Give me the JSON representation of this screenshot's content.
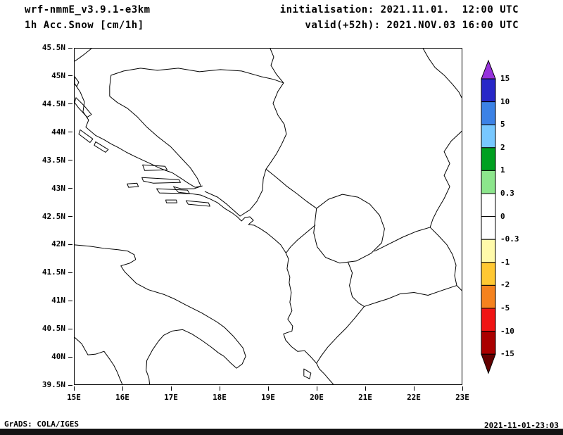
{
  "header": {
    "model": "wrf-nmmE_v3.9.1-e3km",
    "field": "1h Acc.Snow [cm/1h]",
    "initialisation": "initialisation: 2021.11.01.  12:00 UTC",
    "valid": "valid(+52h): 2021.NOV.03 16:00 UTC"
  },
  "footer": {
    "credit": "GrADS: COLA/IGES",
    "timestamp": "2021-11-01-23:03"
  },
  "chart_data": {
    "type": "heatmap",
    "title": "1h Acc.Snow [cm/1h]",
    "subtitle": "wrf-nmmE_v3.9.1-e3km",
    "x_axis": {
      "ticks": [
        "15E",
        "16E",
        "17E",
        "18E",
        "19E",
        "20E",
        "21E",
        "22E",
        "23E"
      ],
      "range_deg_east": [
        15,
        23
      ]
    },
    "y_axis": {
      "ticks": [
        "45.5N",
        "45N",
        "44.5N",
        "44N",
        "43.5N",
        "43N",
        "42.5N",
        "42N",
        "41.5N",
        "41N",
        "40.5N",
        "40N",
        "39.5N"
      ],
      "range_deg_north": [
        39.5,
        45.5
      ]
    },
    "colorbar": {
      "unit": "cm/1h",
      "labels": [
        "15",
        "10",
        "5",
        "2",
        "1",
        "0.3",
        "0",
        "-0.3",
        "-1",
        "-2",
        "-5",
        "-10",
        "-15"
      ],
      "colors": [
        "#9632DC",
        "#2828C8",
        "#3C82E6",
        "#78C8FF",
        "#00A020",
        "#8CE68C",
        "#FFFFFF",
        "#FFFFFF",
        "#FFFAAA",
        "#FFC832",
        "#F5821E",
        "#F01414",
        "#AA0000",
        "#640000"
      ]
    },
    "values_note": "no shaded snow-accumulation areas visible on map (field empty over domain)"
  }
}
